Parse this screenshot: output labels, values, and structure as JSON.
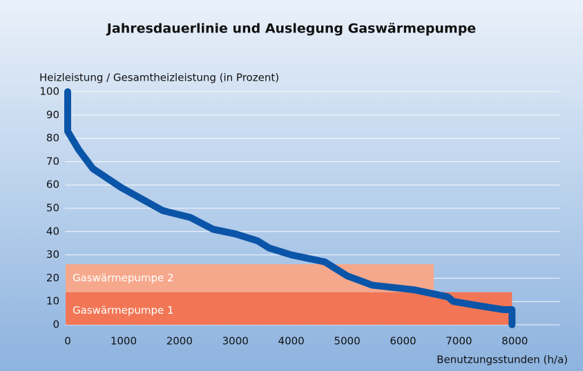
{
  "chart_data": {
    "type": "line",
    "title": "Jahresdauerlinie und Auslegung Gaswärmepumpe",
    "y_label": "Heizleistung / Gesamtheizleistung (in Prozent)",
    "x_label": "Benutzungsstunden (h/a)",
    "x": [
      0,
      0,
      200,
      450,
      950,
      1700,
      2200,
      2600,
      3000,
      3400,
      3600,
      4000,
      4600,
      5000,
      5450,
      6200,
      6800,
      6900,
      7400,
      7800,
      7950,
      7950
    ],
    "series": [
      {
        "color": "#0b55a8",
        "values": [
          100,
          83,
          75,
          67,
          59,
          49,
          46,
          41,
          39,
          36,
          33,
          30,
          27,
          21,
          17,
          15,
          12,
          10,
          8,
          6.5,
          6.5,
          0
        ]
      }
    ],
    "bands": [
      {
        "name": "Gaswärmepumpe 1",
        "color": "#f27655",
        "x": [
          0,
          7950
        ],
        "y": [
          0,
          14
        ]
      },
      {
        "name": "Gaswärmepumpe 2",
        "color": "#f6a88c",
        "x": [
          0,
          6550
        ],
        "y": [
          14,
          26
        ]
      }
    ],
    "xlim": [
      0,
      8800
    ],
    "ylim": [
      0,
      100
    ],
    "xticks": [
      0,
      1000,
      2000,
      3000,
      4000,
      5000,
      6000,
      7000,
      8000
    ],
    "yticks": [
      0,
      10,
      20,
      30,
      40,
      50,
      60,
      70,
      80,
      90,
      100
    ],
    "grid": true
  }
}
